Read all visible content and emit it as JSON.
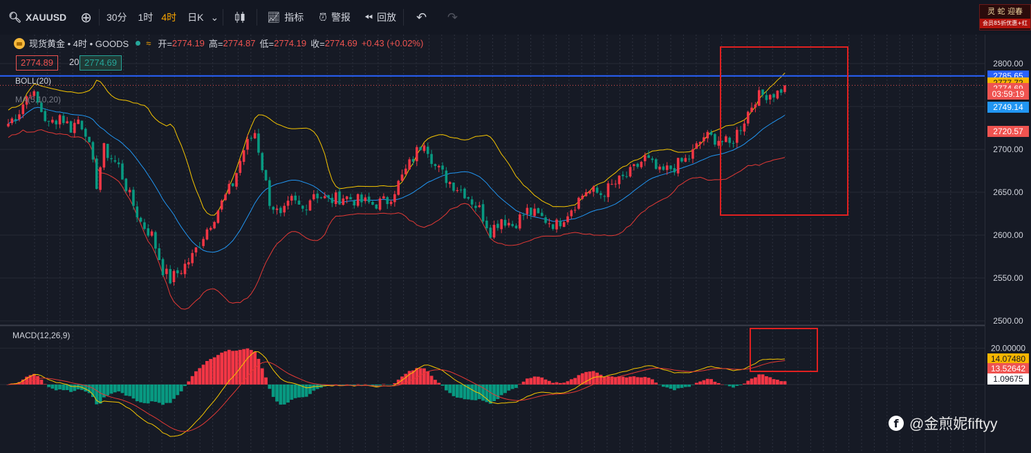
{
  "toolbar": {
    "symbol": "XAUUSD",
    "add_label": "⊕",
    "timeframes": [
      "30分",
      "1时",
      "4时",
      "日K"
    ],
    "active_timeframe": "4时",
    "indicators_label": "指标",
    "alerts_label": "警报",
    "replay_label": "回放",
    "undo_icon": "undo-icon",
    "redo_icon": "redo-icon"
  },
  "promo": {
    "line1": "灵 蛇 迎春",
    "line2": "会员85折优惠+红"
  },
  "legend": {
    "name": "现货黄金 • 4时 • GOODS",
    "open_label": "开=",
    "open": "2774.19",
    "high_label": "高=",
    "high": "2774.87",
    "low_label": "低=",
    "low": "2774.19",
    "close_label": "收=",
    "close": "2774.69",
    "change": "+0.43 (+0.02%)"
  },
  "quote": {
    "bid": "2774.89",
    "spread": "20",
    "ask": "2774.69"
  },
  "indicators": {
    "boll": "BOLL(20)",
    "ma": "MA(5,10,20)",
    "macd": "MACD(12,26,9)"
  },
  "price_tags": [
    {
      "value": "2785.65",
      "color": "#2962ff",
      "y": 2785.65
    },
    {
      "value": "2777.72",
      "color": "#f7b500",
      "y": 2777.72,
      "dark": true
    },
    {
      "value": "2774.69",
      "color": "#ef5350",
      "y": 2771.0
    },
    {
      "value": "03:59:19",
      "color": "#ef5350",
      "y": 2764.5
    },
    {
      "value": "2749.14",
      "color": "#2196f3",
      "y": 2749.14
    },
    {
      "value": "2720.57",
      "color": "#ef5350",
      "y": 2720.57
    }
  ],
  "macd_tags": [
    {
      "value": "14.07480",
      "color": "#f7b500",
      "y": 14.0748,
      "dark": true
    },
    {
      "value": "13.52642",
      "color": "#ef5350",
      "y": 8.6
    },
    {
      "value": "1.09675",
      "color": "#ffffff",
      "y": 3.2,
      "dark": true
    }
  ],
  "watermark": {
    "text": "@金煎妮fiftyy"
  },
  "chart_data": [
    {
      "type": "candlestick",
      "title": "现货黄金 • 4时 • GOODS",
      "ylim": [
        2490,
        2830
      ],
      "yticks": [
        2800,
        2750,
        2700,
        2650,
        2600,
        2550,
        2500
      ],
      "ytick_labels": [
        "2800.00",
        "",
        "2700.00",
        "2650.00",
        "2600.00",
        "2550.00",
        "2500.00"
      ],
      "current_price": 2774.69,
      "horizontal_line": 2785.65,
      "close_path": [
        [
          0,
          2730
        ],
        [
          3,
          2745
        ],
        [
          6,
          2770
        ],
        [
          9,
          2745
        ],
        [
          11,
          2728
        ],
        [
          14,
          2740
        ],
        [
          17,
          2725
        ],
        [
          19,
          2735
        ],
        [
          21,
          2722
        ],
        [
          24,
          2660
        ],
        [
          26,
          2700
        ],
        [
          30,
          2680
        ],
        [
          33,
          2645
        ],
        [
          36,
          2615
        ],
        [
          39,
          2600
        ],
        [
          42,
          2560
        ],
        [
          44,
          2548
        ],
        [
          47,
          2560
        ],
        [
          50,
          2575
        ],
        [
          53,
          2600
        ],
        [
          57,
          2630
        ],
        [
          61,
          2660
        ],
        [
          64,
          2700
        ],
        [
          67,
          2720
        ],
        [
          69,
          2680
        ],
        [
          71,
          2640
        ],
        [
          74,
          2620
        ],
        [
          77,
          2640
        ],
        [
          80,
          2630
        ],
        [
          83,
          2650
        ],
        [
          87,
          2640
        ],
        [
          91,
          2645
        ],
        [
          95,
          2640
        ],
        [
          99,
          2636
        ],
        [
          103,
          2640
        ],
        [
          106,
          2660
        ],
        [
          110,
          2690
        ],
        [
          113,
          2712
        ],
        [
          116,
          2680
        ],
        [
          120,
          2662
        ],
        [
          124,
          2650
        ],
        [
          128,
          2630
        ],
        [
          131,
          2605
        ],
        [
          134,
          2620
        ],
        [
          137,
          2612
        ],
        [
          141,
          2628
        ],
        [
          145,
          2620
        ],
        [
          149,
          2612
        ],
        [
          153,
          2632
        ],
        [
          157,
          2652
        ],
        [
          161,
          2648
        ],
        [
          165,
          2660
        ],
        [
          169,
          2672
        ],
        [
          173,
          2690
        ],
        [
          177,
          2672
        ],
        [
          181,
          2680
        ],
        [
          185,
          2690
        ],
        [
          189,
          2715
        ],
        [
          193,
          2712
        ],
        [
          196,
          2705
        ],
        [
          200,
          2735
        ],
        [
          203,
          2760
        ],
        [
          206,
          2765
        ],
        [
          209,
          2766
        ],
        [
          211,
          2774.69
        ]
      ],
      "boll_period": 20,
      "boll_mult": 2
    },
    {
      "type": "macd",
      "title": "MACD(12,26,9)",
      "ylim": [
        -65,
        50
      ],
      "yticks": [
        20
      ],
      "ytick_labels": [
        "20.00000"
      ],
      "dif": 14.0748,
      "dea": 13.52642,
      "hist": 1.09675
    }
  ]
}
